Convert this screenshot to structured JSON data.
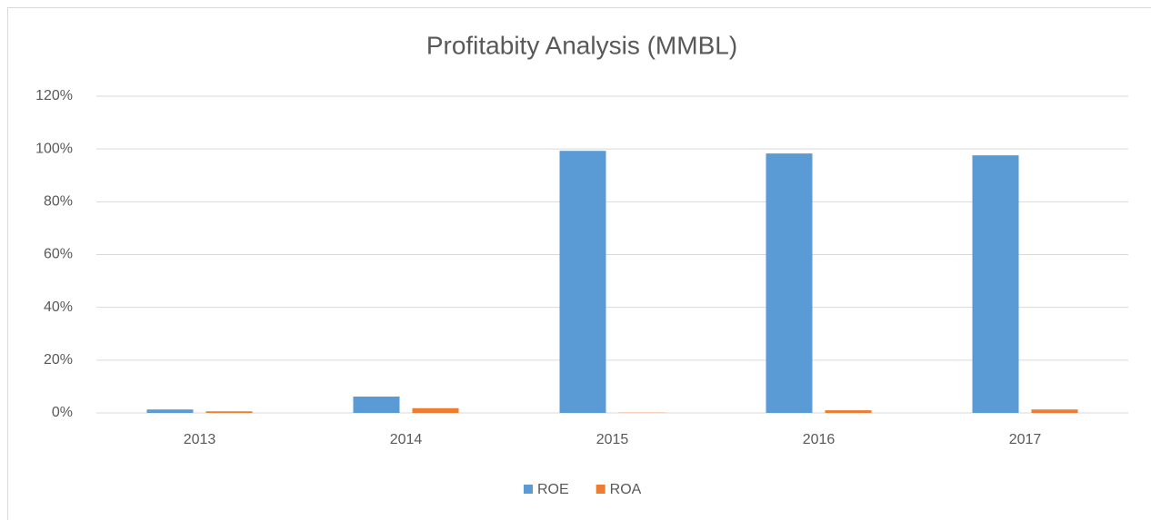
{
  "chart_data": {
    "type": "bar",
    "title": "Profitabity Analysis (MMBL)",
    "categories": [
      "2013",
      "2014",
      "2015",
      "2016",
      "2017"
    ],
    "series": [
      {
        "name": "ROE",
        "color": "#5b9bd5",
        "values": [
          1.3,
          6.2,
          99.3,
          98.3,
          97.6
        ]
      },
      {
        "name": "ROA",
        "color": "#ed7d31",
        "values": [
          0.6,
          1.8,
          0.1,
          1.0,
          1.3
        ]
      }
    ],
    "ylim": [
      0,
      120
    ],
    "yticks": [
      {
        "value": 0,
        "label": "0%"
      },
      {
        "value": 20,
        "label": "20%"
      },
      {
        "value": 40,
        "label": "40%"
      },
      {
        "value": 60,
        "label": "60%"
      },
      {
        "value": 80,
        "label": "80%"
      },
      {
        "value": 100,
        "label": "100%"
      },
      {
        "value": 120,
        "label": "120%"
      }
    ],
    "grid": true,
    "legend": "bottom"
  }
}
